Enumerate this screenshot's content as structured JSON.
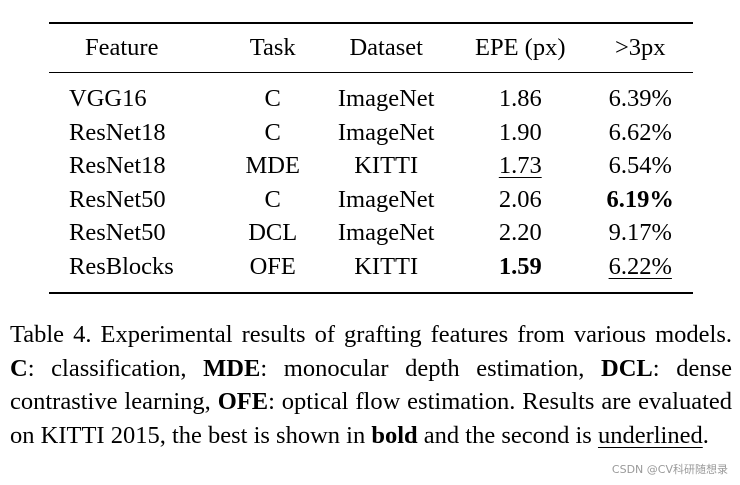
{
  "table": {
    "headers": [
      "Feature",
      "Task",
      "Dataset",
      "EPE (px)",
      ">3px"
    ],
    "rows": [
      {
        "feature": "VGG16",
        "task": "C",
        "dataset": "ImageNet",
        "epe": "1.86",
        "gt3": "6.39%",
        "epe_style": "",
        "gt3_style": ""
      },
      {
        "feature": "ResNet18",
        "task": "C",
        "dataset": "ImageNet",
        "epe": "1.90",
        "gt3": "6.62%",
        "epe_style": "",
        "gt3_style": ""
      },
      {
        "feature": "ResNet18",
        "task": "MDE",
        "dataset": "KITTI",
        "epe": "1.73",
        "gt3": "6.54%",
        "epe_style": "underline",
        "gt3_style": ""
      },
      {
        "feature": "ResNet50",
        "task": "C",
        "dataset": "ImageNet",
        "epe": "2.06",
        "gt3": "6.19%",
        "epe_style": "",
        "gt3_style": "bold"
      },
      {
        "feature": "ResNet50",
        "task": "DCL",
        "dataset": "ImageNet",
        "epe": "2.20",
        "gt3": "9.17%",
        "epe_style": "",
        "gt3_style": ""
      },
      {
        "feature": "ResBlocks",
        "task": "OFE",
        "dataset": "KITTI",
        "epe": "1.59",
        "gt3": "6.22%",
        "epe_style": "bold",
        "gt3_style": "underline"
      }
    ]
  },
  "caption": {
    "intro": "Table 4.  Experimental results of grafting features from various models.  ",
    "c_abbr": "C",
    "c_desc": ": classification, ",
    "mde_abbr": "MDE",
    "mde_desc": ": monocular depth estimation, ",
    "dcl_abbr": "DCL",
    "dcl_desc": ": dense contrastive learning, ",
    "ofe_abbr": "OFE",
    "ofe_desc": ": optical flow estimation. Results are evaluated on KITTI 2015, the best is shown in ",
    "bold_word": "bold",
    "mid": " and the second is ",
    "underlined_word": "underlined",
    "end": "."
  },
  "watermark": "CSDN @CV科研随想录"
}
